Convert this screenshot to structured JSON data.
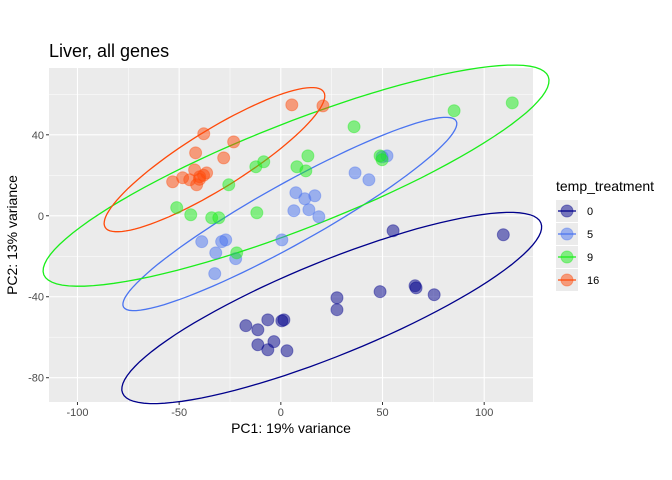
{
  "chart_data": {
    "type": "scatter",
    "title": "Liver, all genes",
    "xlabel": "PC1: 19% variance",
    "ylabel": "PC2: 13% variance",
    "xlim": [
      -114,
      124
    ],
    "ylim": [
      -92,
      73
    ],
    "xticks": [
      -100,
      -50,
      0,
      50,
      100
    ],
    "yticks": [
      -80,
      -40,
      0,
      40
    ],
    "xtick_labels": [
      "-100",
      "-50",
      "0",
      "50",
      "100"
    ],
    "ytick_labels": [
      "-80",
      "-40",
      "0",
      "40"
    ],
    "grid": true,
    "legend": {
      "title": "temp_treatment",
      "placement": "right"
    },
    "ellipses": "95% per group",
    "series": [
      {
        "name": "0",
        "color": "#00008B",
        "points": [
          [
            -17.2,
            -54.3
          ],
          [
            -11.3,
            -56.3
          ],
          [
            -6.4,
            -51.4
          ],
          [
            0.5,
            -51.9
          ],
          [
            1.5,
            -51.4
          ],
          [
            -11.3,
            -63.7
          ],
          [
            -6.4,
            -66.2
          ],
          [
            -3.4,
            -62.2
          ],
          [
            3.0,
            -66.7
          ],
          [
            27.6,
            -40.5
          ],
          [
            27.6,
            -46.4
          ],
          [
            48.8,
            -37.5
          ],
          [
            66.0,
            -34.6
          ],
          [
            66.5,
            -35.6
          ],
          [
            75.4,
            -39.0
          ],
          [
            55.2,
            -7.4
          ],
          [
            109.4,
            -9.4
          ]
        ]
      },
      {
        "name": "5",
        "color": "#4A74F0",
        "points": [
          [
            -38.9,
            -12.8
          ],
          [
            -32.0,
            -18.3
          ],
          [
            -29.1,
            -12.8
          ],
          [
            -27.1,
            -11.9
          ],
          [
            -22.2,
            -21.2
          ],
          [
            -32.5,
            -28.6
          ],
          [
            0.5,
            -11.9
          ],
          [
            7.4,
            11.4
          ],
          [
            11.8,
            8.4
          ],
          [
            16.7,
            9.9
          ],
          [
            13.8,
            3.0
          ],
          [
            6.4,
            2.5
          ],
          [
            18.7,
            -0.5
          ],
          [
            36.5,
            21.2
          ],
          [
            43.3,
            17.8
          ],
          [
            49.8,
            29.1
          ],
          [
            52.2,
            29.6
          ]
        ]
      },
      {
        "name": "9",
        "color": "#1AEE1A",
        "points": [
          [
            -51.2,
            4.0
          ],
          [
            -44.3,
            0.5
          ],
          [
            -34.0,
            -1.0
          ],
          [
            -30.5,
            -1.0
          ],
          [
            -21.7,
            -18.3
          ],
          [
            -25.6,
            15.3
          ],
          [
            -12.3,
            24.2
          ],
          [
            -8.4,
            26.7
          ],
          [
            -11.8,
            1.5
          ],
          [
            7.9,
            24.2
          ],
          [
            13.3,
            29.6
          ],
          [
            12.3,
            22.2
          ],
          [
            36.0,
            44.0
          ],
          [
            48.8,
            29.6
          ],
          [
            49.8,
            27.7
          ],
          [
            85.2,
            51.9
          ],
          [
            113.8,
            55.8
          ]
        ]
      },
      {
        "name": "16",
        "color": "#FF4A0A",
        "points": [
          [
            -37.9,
            40.5
          ],
          [
            -23.2,
            36.5
          ],
          [
            -41.9,
            31.1
          ],
          [
            -28.1,
            28.6
          ],
          [
            -53.2,
            16.8
          ],
          [
            -48.3,
            18.8
          ],
          [
            -44.8,
            17.8
          ],
          [
            -41.4,
            15.3
          ],
          [
            -39.9,
            19.3
          ],
          [
            -36.5,
            21.2
          ],
          [
            -42.4,
            22.7
          ],
          [
            -40.0,
            18.0
          ],
          [
            -38.0,
            20.0
          ],
          [
            5.4,
            54.8
          ],
          [
            20.7,
            54.3
          ]
        ]
      }
    ]
  }
}
